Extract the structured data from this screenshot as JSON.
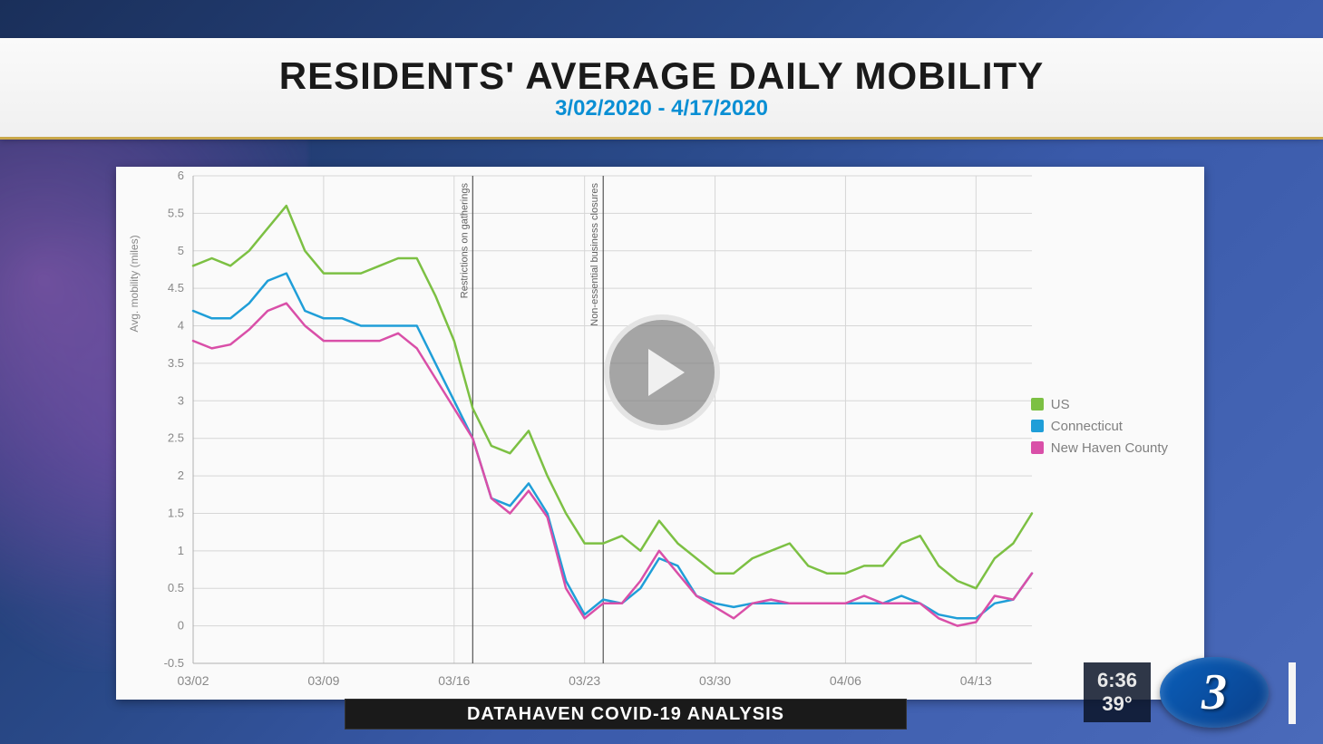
{
  "header": {
    "title": "RESIDENTS' AVERAGE DAILY MOBILITY",
    "date_range": "3/02/2020 - 4/17/2020"
  },
  "footer": {
    "banner": "DATAHAVEN COVID-19 ANALYSIS"
  },
  "overlay": {
    "time": "6:36",
    "temp": "39°",
    "station_logo": "3"
  },
  "chart": {
    "type": "line",
    "background_color": "#fafafa",
    "plot_bg_color": "#fafafa",
    "grid_color": "#d6d6d6",
    "axis_text_color": "#888888",
    "axis_line_color": "#b0b0b0",
    "yaxis": {
      "label": "Avg. mobility (miles)",
      "label_fontsize": 12,
      "min": -0.5,
      "max": 6,
      "tick_step": 0.5,
      "ticks": [
        -0.5,
        0,
        0.5,
        1,
        1.5,
        2,
        2.5,
        3,
        3.5,
        4,
        4.5,
        5,
        5.5,
        6
      ]
    },
    "xaxis": {
      "ticks": [
        "03/02",
        "03/09",
        "03/16",
        "03/23",
        "03/30",
        "04/06",
        "04/13"
      ],
      "tick_positions": [
        0,
        7,
        14,
        21,
        28,
        35,
        42
      ],
      "data_point_count": 46,
      "fontsize": 14
    },
    "annotations": [
      {
        "label": "Restrictions on gatherings",
        "x_index": 15,
        "label_fontsize": 11
      },
      {
        "label": "Non-essential business closures",
        "x_index": 22,
        "label_fontsize": 11
      }
    ],
    "annotation_line_color": "#555555",
    "series": [
      {
        "name": "US",
        "color": "#7cc043",
        "line_width": 2.5,
        "values": [
          4.8,
          4.9,
          4.8,
          5.0,
          5.3,
          5.6,
          5.0,
          4.7,
          4.7,
          4.7,
          4.8,
          4.9,
          4.9,
          4.4,
          3.8,
          2.9,
          2.4,
          2.3,
          2.6,
          2.0,
          1.5,
          1.1,
          1.1,
          1.2,
          1.0,
          1.4,
          1.1,
          0.9,
          0.7,
          0.7,
          0.9,
          1.0,
          1.1,
          0.8,
          0.7,
          0.7,
          0.8,
          0.8,
          1.1,
          1.2,
          0.8,
          0.6,
          0.5,
          0.9,
          1.1,
          1.5
        ]
      },
      {
        "name": "Connecticut",
        "color": "#1f9ed8",
        "line_width": 2.5,
        "values": [
          4.2,
          4.1,
          4.1,
          4.3,
          4.6,
          4.7,
          4.2,
          4.1,
          4.1,
          4.0,
          4.0,
          4.0,
          4.0,
          3.5,
          3.0,
          2.5,
          1.7,
          1.6,
          1.9,
          1.5,
          0.6,
          0.15,
          0.35,
          0.3,
          0.5,
          0.9,
          0.8,
          0.4,
          0.3,
          0.25,
          0.3,
          0.3,
          0.3,
          0.3,
          0.3,
          0.3,
          0.3,
          0.3,
          0.4,
          0.3,
          0.15,
          0.1,
          0.1,
          0.3,
          0.35,
          0.7
        ]
      },
      {
        "name": "New Haven County",
        "color": "#d94fa8",
        "line_width": 2.5,
        "values": [
          3.8,
          3.7,
          3.75,
          3.95,
          4.2,
          4.3,
          4.0,
          3.8,
          3.8,
          3.8,
          3.8,
          3.9,
          3.7,
          3.3,
          2.9,
          2.5,
          1.7,
          1.5,
          1.8,
          1.45,
          0.5,
          0.1,
          0.3,
          0.3,
          0.6,
          1.0,
          0.7,
          0.4,
          0.25,
          0.1,
          0.3,
          0.35,
          0.3,
          0.3,
          0.3,
          0.3,
          0.4,
          0.3,
          0.3,
          0.3,
          0.1,
          0.0,
          0.05,
          0.4,
          0.35,
          0.7
        ]
      }
    ],
    "legend": {
      "fontsize": 15,
      "text_color": "#808080"
    }
  }
}
